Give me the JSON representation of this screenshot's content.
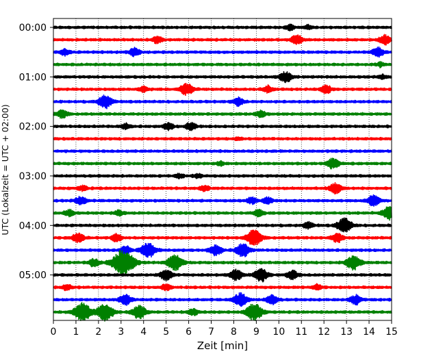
{
  "chart_data": {
    "type": "line",
    "title": "",
    "xlabel": "Zeit  [min]",
    "ylabel": "UTC (Lokalzeit = UTC + 02:00)",
    "xlim": [
      0,
      15
    ],
    "x_ticks": [
      "0",
      "1",
      "2",
      "3",
      "4",
      "5",
      "6",
      "7",
      "8",
      "9",
      "10",
      "11",
      "12",
      "13",
      "14",
      "15"
    ],
    "y_tick_labels": [
      "00:00",
      "01:00",
      "02:00",
      "03:00",
      "04:00",
      "05:00"
    ],
    "trace_interval_min": 15,
    "trace_count": 24,
    "trace_colors": [
      "#000000",
      "#ff0000",
      "#0000ff",
      "#008000"
    ],
    "grid": "vertical dotted at each minute",
    "traces": [
      {
        "start": "00:00",
        "color": "#000000",
        "bursts": [
          [
            10.5,
            0.4
          ],
          [
            11.3,
            0.3
          ]
        ]
      },
      {
        "start": "00:15",
        "color": "#ff0000",
        "bursts": [
          [
            4.6,
            0.5
          ],
          [
            10.8,
            0.7
          ],
          [
            14.7,
            0.7
          ]
        ]
      },
      {
        "start": "00:30",
        "color": "#0000ff",
        "bursts": [
          [
            0.5,
            0.5
          ],
          [
            3.6,
            0.6
          ],
          [
            14.4,
            0.7
          ]
        ]
      },
      {
        "start": "00:45",
        "color": "#008000",
        "bursts": [
          [
            14.5,
            0.3
          ]
        ]
      },
      {
        "start": "01:00",
        "color": "#000000",
        "bursts": [
          [
            10.3,
            0.8
          ],
          [
            14.6,
            0.3
          ]
        ]
      },
      {
        "start": "01:15",
        "color": "#ff0000",
        "bursts": [
          [
            4.0,
            0.4
          ],
          [
            5.9,
            0.9
          ],
          [
            9.5,
            0.5
          ],
          [
            12.1,
            0.6
          ]
        ]
      },
      {
        "start": "01:30",
        "color": "#0000ff",
        "bursts": [
          [
            2.3,
            1.0
          ],
          [
            8.2,
            0.6
          ]
        ]
      },
      {
        "start": "01:45",
        "color": "#008000",
        "bursts": [
          [
            0.4,
            0.6
          ],
          [
            9.2,
            0.5
          ]
        ]
      },
      {
        "start": "02:00",
        "color": "#000000",
        "bursts": [
          [
            3.2,
            0.4
          ],
          [
            5.1,
            0.5
          ],
          [
            6.1,
            0.6
          ]
        ]
      },
      {
        "start": "02:15",
        "color": "#ff0000",
        "bursts": [
          [
            8.2,
            0.2
          ]
        ]
      },
      {
        "start": "02:30",
        "color": "#0000ff",
        "bursts": []
      },
      {
        "start": "02:45",
        "color": "#008000",
        "bursts": [
          [
            7.4,
            0.3
          ],
          [
            12.4,
            0.8
          ]
        ]
      },
      {
        "start": "03:00",
        "color": "#000000",
        "bursts": [
          [
            5.6,
            0.3
          ],
          [
            6.4,
            0.3
          ]
        ]
      },
      {
        "start": "03:15",
        "color": "#ff0000",
        "bursts": [
          [
            1.3,
            0.4
          ],
          [
            6.7,
            0.4
          ],
          [
            12.5,
            0.8
          ]
        ]
      },
      {
        "start": "03:30",
        "color": "#0000ff",
        "bursts": [
          [
            1.2,
            0.6
          ],
          [
            8.8,
            0.5
          ],
          [
            9.5,
            0.5
          ],
          [
            14.2,
            0.8
          ]
        ]
      },
      {
        "start": "03:45",
        "color": "#008000",
        "bursts": [
          [
            0.7,
            0.5
          ],
          [
            2.9,
            0.4
          ],
          [
            9.1,
            0.5
          ],
          [
            14.9,
            1.0
          ]
        ]
      },
      {
        "start": "04:00",
        "color": "#000000",
        "bursts": [
          [
            11.3,
            0.5
          ],
          [
            12.9,
            1.1
          ]
        ]
      },
      {
        "start": "04:15",
        "color": "#ff0000",
        "bursts": [
          [
            1.1,
            0.7
          ],
          [
            2.8,
            0.6
          ],
          [
            8.9,
            1.2
          ],
          [
            12.6,
            0.7
          ]
        ]
      },
      {
        "start": "04:30",
        "color": "#0000ff",
        "bursts": [
          [
            4.2,
            1.1
          ],
          [
            7.2,
            0.8
          ],
          [
            8.4,
            1.0
          ],
          [
            3.2,
            0.6
          ]
        ]
      },
      {
        "start": "04:45",
        "color": "#008000",
        "bursts": [
          [
            1.8,
            0.6
          ],
          [
            3.1,
            2.0
          ],
          [
            5.4,
            1.2
          ],
          [
            13.3,
            1.1
          ]
        ]
      },
      {
        "start": "05:00",
        "color": "#000000",
        "bursts": [
          [
            5.0,
            0.8
          ],
          [
            8.1,
            0.8
          ],
          [
            9.2,
            1.0
          ],
          [
            10.6,
            0.7
          ]
        ]
      },
      {
        "start": "05:15",
        "color": "#ff0000",
        "bursts": [
          [
            0.6,
            0.4
          ],
          [
            5.0,
            0.5
          ],
          [
            11.7,
            0.4
          ]
        ]
      },
      {
        "start": "05:30",
        "color": "#0000ff",
        "bursts": [
          [
            3.2,
            0.8
          ],
          [
            8.3,
            1.0
          ],
          [
            9.7,
            0.7
          ],
          [
            13.4,
            0.7
          ]
        ]
      },
      {
        "start": "05:45",
        "color": "#008000",
        "bursts": [
          [
            1.3,
            1.4
          ],
          [
            2.3,
            1.3
          ],
          [
            3.8,
            1.0
          ],
          [
            6.2,
            0.5
          ],
          [
            8.9,
            1.3
          ]
        ]
      }
    ]
  }
}
